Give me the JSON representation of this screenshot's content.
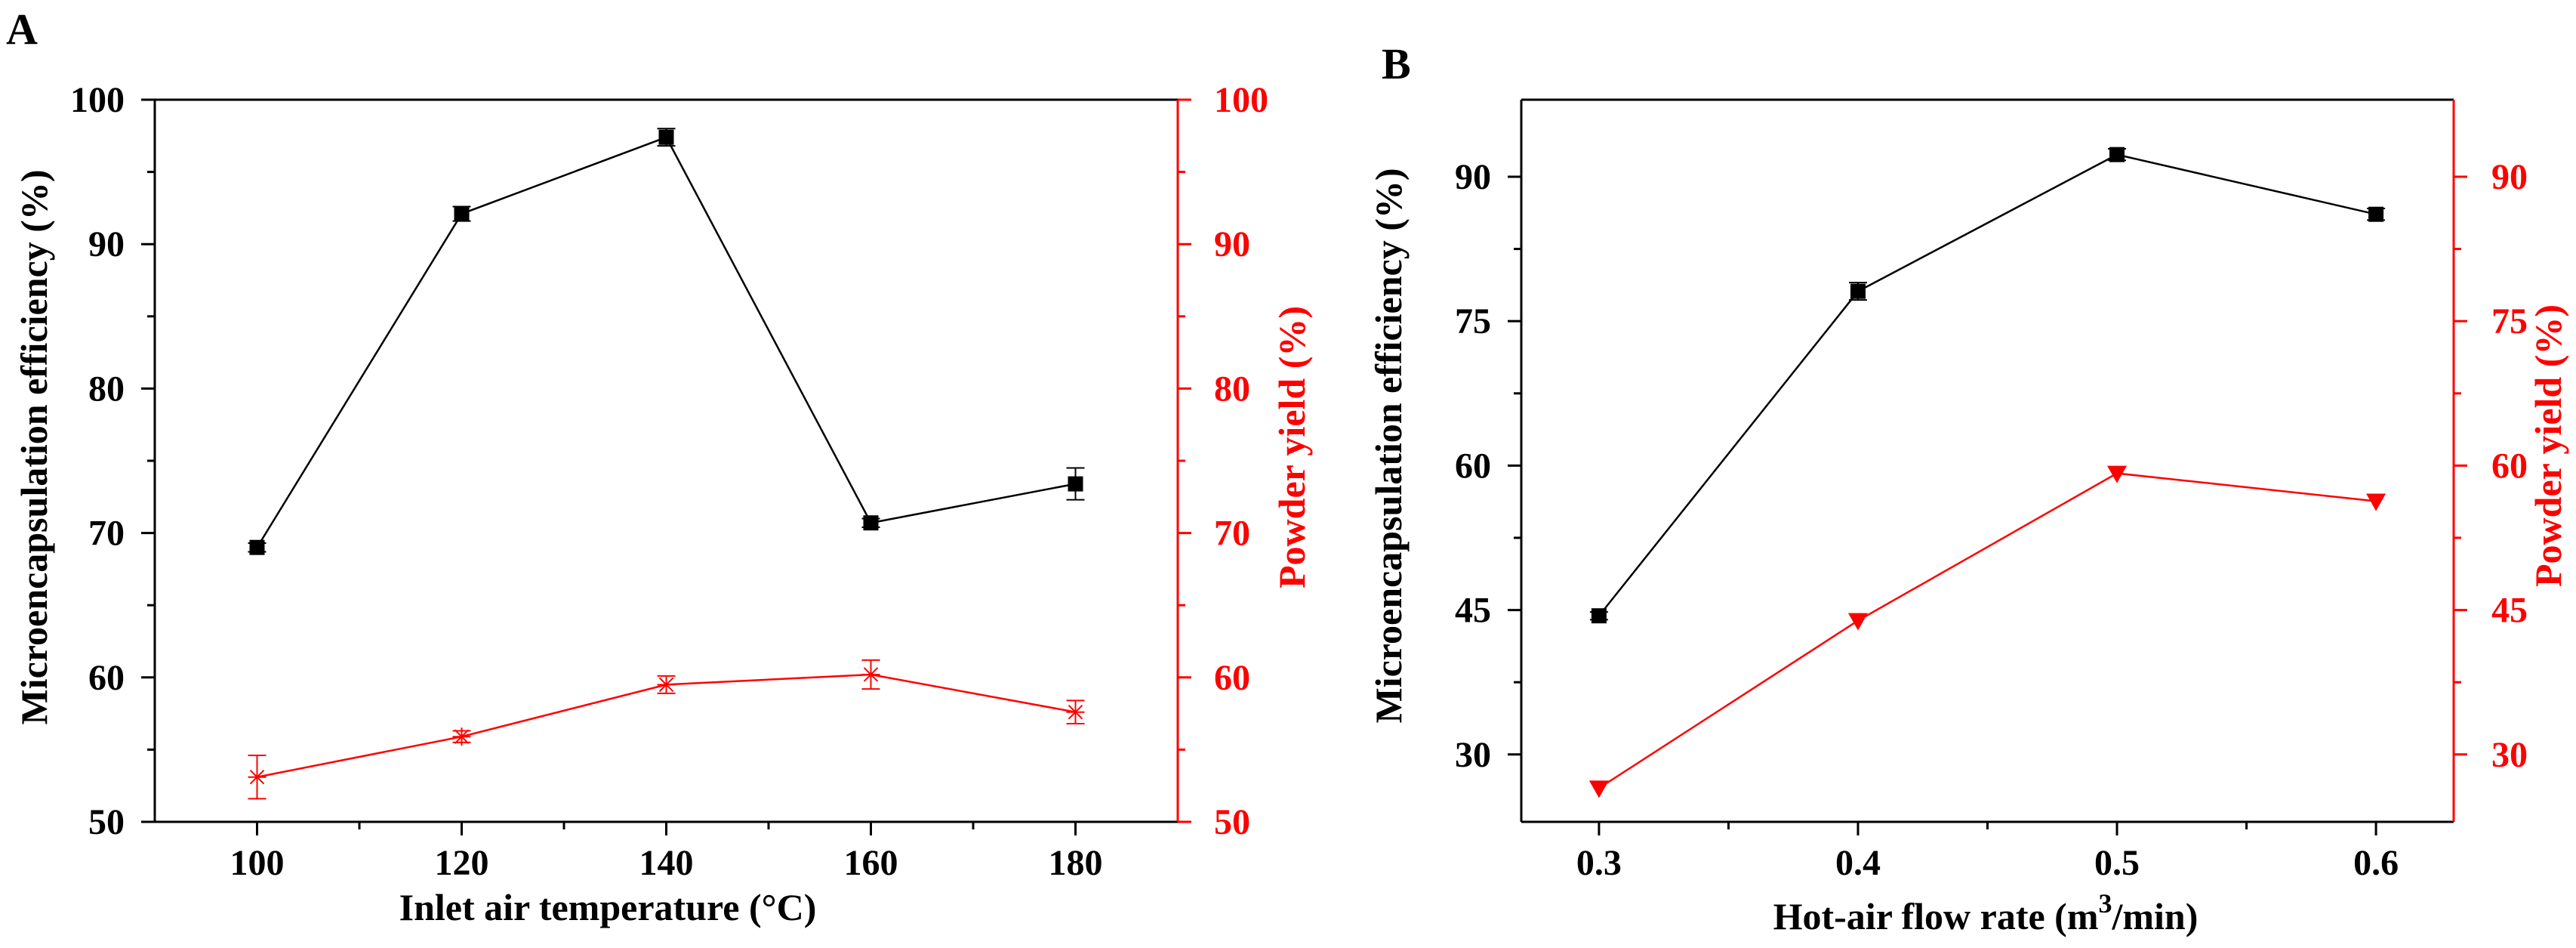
{
  "colors": {
    "black": "#000000",
    "red": "#ff0000",
    "background": "#ffffff"
  },
  "chart_data": [
    {
      "panel": "A",
      "type": "line",
      "xlabel": "Inlet air temperature (°C)",
      "ylabel_left": "Microencapsulation efficiency (%)",
      "ylabel_right": "Powder yield (%)",
      "xlim": [
        90,
        190
      ],
      "ylim_left": [
        50,
        100
      ],
      "ylim_right": [
        50,
        100
      ],
      "xticks": [
        100,
        120,
        140,
        160,
        180
      ],
      "yticks_left": [
        50,
        60,
        70,
        80,
        90,
        100
      ],
      "yticks_right": [
        50,
        60,
        70,
        80,
        90,
        100
      ],
      "x": [
        100,
        120,
        140,
        160,
        180
      ],
      "series": [
        {
          "name": "Microencapsulation efficiency",
          "axis": "left",
          "color": "#000000",
          "marker": "square",
          "values": [
            69.0,
            92.1,
            97.4,
            70.7,
            73.4
          ],
          "errors": [
            0.3,
            0.5,
            0.6,
            0.3,
            1.1
          ]
        },
        {
          "name": "Powder yield",
          "axis": "right",
          "color": "#ff0000",
          "marker": "asterisk",
          "values": [
            53.1,
            55.9,
            59.5,
            60.2,
            57.6
          ],
          "errors": [
            1.5,
            0.4,
            0.6,
            1.0,
            0.8
          ]
        }
      ]
    },
    {
      "panel": "B",
      "type": "line",
      "xlabel_prefix": "Hot-air flow rate  (m",
      "xlabel_sup": "3",
      "xlabel_suffix": "/min)",
      "ylabel_left": "Microencapsulation efficiency (%)",
      "ylabel_right": "Powder yield (%)",
      "xlim": [
        0.27,
        0.63
      ],
      "ylim_left": [
        23,
        98
      ],
      "ylim_right": [
        23,
        98
      ],
      "xticks": [
        "0.3",
        "0.4",
        "0.5",
        "0.6"
      ],
      "yticks_left": [
        30,
        45,
        60,
        75,
        90
      ],
      "yticks_right": [
        30,
        45,
        60,
        75,
        90
      ],
      "x": [
        0.3,
        0.4,
        0.5,
        0.6
      ],
      "series": [
        {
          "name": "Microencapsulation efficiency",
          "axis": "left",
          "color": "#000000",
          "marker": "square",
          "values": [
            44.4,
            78.1,
            92.3,
            86.1
          ],
          "errors": [
            0.4,
            0.9,
            0.6,
            0.6
          ]
        },
        {
          "name": "Powder yield",
          "axis": "right",
          "color": "#ff0000",
          "marker": "triangle-down",
          "values": [
            26.5,
            43.9,
            59.2,
            56.3
          ],
          "errors": [
            0,
            0,
            0,
            0
          ]
        }
      ]
    }
  ]
}
